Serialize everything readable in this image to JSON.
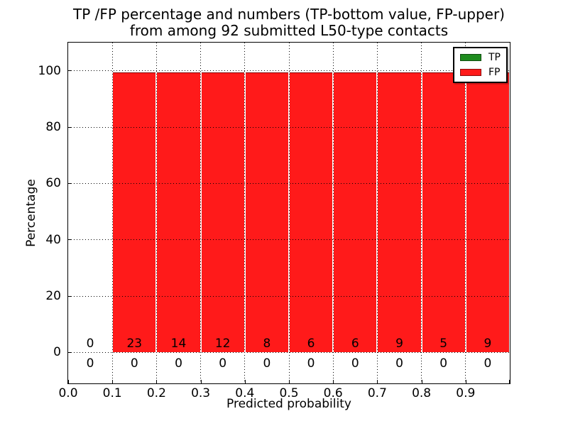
{
  "chart_data": {
    "type": "bar",
    "stacked": true,
    "title_lines": [
      "TP /FP percentage and numbers (TP-bottom value, FP-upper)",
      "from among 92 submitted L50-type contacts"
    ],
    "xlabel": "Predicted probability",
    "ylabel": "Percentage",
    "xlim": [
      0.0,
      1.0
    ],
    "ylim": [
      -11,
      110
    ],
    "grid": true,
    "grid_style": "dotted",
    "bin_edges": [
      0.0,
      0.1,
      0.2,
      0.3,
      0.4,
      0.5,
      0.6,
      0.7,
      0.8,
      0.9,
      1.0
    ],
    "x_tick_values": [
      0.0,
      0.1,
      0.2,
      0.3,
      0.4,
      0.5,
      0.6,
      0.7,
      0.8,
      0.9
    ],
    "x_tick_labels": [
      "0.0",
      "0.1",
      "0.2",
      "0.3",
      "0.4",
      "0.5",
      "0.6",
      "0.7",
      "0.8",
      "0.9"
    ],
    "y_tick_values": [
      0,
      20,
      40,
      60,
      80,
      100
    ],
    "y_tick_labels": [
      "0",
      "20",
      "40",
      "60",
      "80",
      "100"
    ],
    "series": [
      {
        "name": "TP",
        "color": "#1e8c1e",
        "counts": [
          0,
          0,
          0,
          0,
          0,
          0,
          0,
          0,
          0,
          0
        ],
        "percent": [
          0,
          0,
          0,
          0,
          0,
          0,
          0,
          0,
          0,
          0
        ]
      },
      {
        "name": "FP",
        "color": "#ff1a1a",
        "counts": [
          0,
          23,
          14,
          12,
          8,
          6,
          6,
          9,
          5,
          9
        ],
        "percent": [
          0,
          100,
          100,
          100,
          100,
          100,
          100,
          100,
          100,
          100
        ]
      }
    ],
    "annotations": {
      "fp_counts_row": [
        "0",
        "23",
        "14",
        "12",
        "8",
        "6",
        "6",
        "9",
        "5",
        "9"
      ],
      "tp_counts_row": [
        "0",
        "0",
        "0",
        "0",
        "0",
        "0",
        "0",
        "0",
        "0",
        "0"
      ]
    },
    "legend": {
      "position": "upper right",
      "entries": [
        {
          "label": "TP",
          "color": "#1e8c1e"
        },
        {
          "label": "FP",
          "color": "#ff1a1a"
        }
      ]
    }
  }
}
